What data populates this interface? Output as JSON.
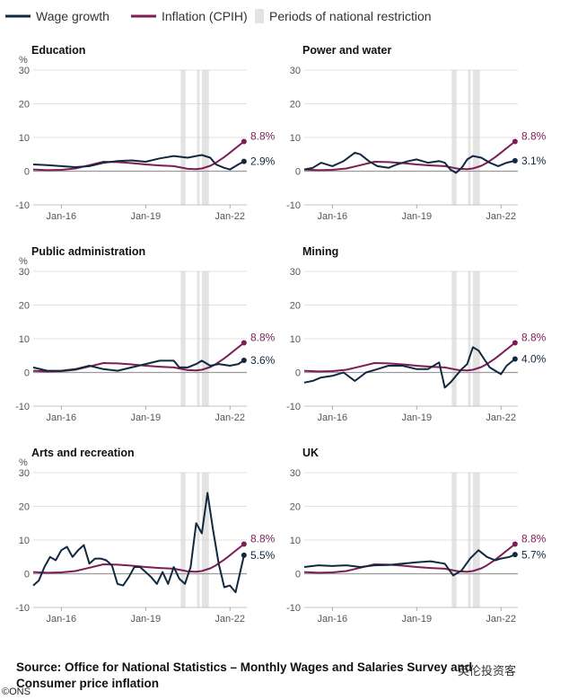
{
  "legend": {
    "wage": "Wage growth",
    "inflation": "Inflation (CPIH)",
    "restriction": "Periods of national restriction"
  },
  "colors": {
    "wage": "#12283f",
    "inflation": "#7d1d56",
    "restriction": "#e3e3e3",
    "zero": "#9a9a9a",
    "grid": "#d6d6d6"
  },
  "source": "Source: Office for National Statistics – Monthly Wages and Salaries Survey and Consumer price inflation",
  "credit": "©ONS",
  "watermark": "英伦投资客",
  "chart_data": [
    {
      "type": "line",
      "title": "Education",
      "ylabel": "%",
      "ylim": [
        -10,
        30
      ],
      "yticks": [
        30,
        20,
        10,
        0,
        -10
      ],
      "xlim": [
        2015.0,
        2022.6
      ],
      "xticks": [
        {
          "label": "Jan-16",
          "x": 2016.0
        },
        {
          "label": "Jan-19",
          "x": 2019.0
        },
        {
          "label": "Jan-22",
          "x": 2022.0
        }
      ],
      "restrictions": [
        [
          2020.25,
          2020.42
        ],
        [
          2020.83,
          2020.92
        ],
        [
          2021.0,
          2021.25
        ]
      ],
      "series": [
        {
          "name": "Wage growth",
          "label": "2.9%",
          "x": [
            2015.0,
            2015.5,
            2016.0,
            2016.5,
            2017.0,
            2017.5,
            2018.0,
            2018.5,
            2019.0,
            2019.5,
            2020.0,
            2020.5,
            2020.8,
            2021.0,
            2021.3,
            2021.5,
            2021.8,
            2022.0,
            2022.3,
            2022.5
          ],
          "y": [
            2.0,
            1.8,
            1.5,
            1.2,
            1.5,
            2.5,
            3.0,
            3.2,
            2.8,
            3.8,
            4.5,
            4.0,
            4.5,
            4.8,
            4.0,
            2.0,
            1.0,
            0.5,
            2.0,
            2.9
          ]
        },
        {
          "name": "Inflation (CPIH)",
          "label": "8.8%",
          "x": [
            2015.0,
            2015.5,
            2016.0,
            2016.5,
            2017.0,
            2017.5,
            2018.0,
            2018.5,
            2019.0,
            2019.5,
            2020.0,
            2020.5,
            2020.8,
            2021.0,
            2021.3,
            2021.5,
            2021.8,
            2022.0,
            2022.3,
            2022.5
          ],
          "y": [
            0.5,
            0.3,
            0.4,
            0.8,
            1.8,
            2.8,
            2.7,
            2.4,
            2.0,
            1.7,
            1.5,
            0.7,
            0.6,
            0.8,
            1.6,
            2.5,
            4.2,
            5.5,
            7.5,
            8.8
          ]
        }
      ]
    },
    {
      "type": "line",
      "title": "Power and water",
      "ylabel": "",
      "ylim": [
        -10,
        30
      ],
      "yticks": [
        30,
        20,
        10,
        0,
        -10
      ],
      "xlim": [
        2015.0,
        2022.6
      ],
      "xticks": [
        {
          "label": "Jan-16",
          "x": 2016.0
        },
        {
          "label": "Jan-19",
          "x": 2019.0
        },
        {
          "label": "Jan-22",
          "x": 2022.0
        }
      ],
      "restrictions": [
        [
          2020.25,
          2020.42
        ],
        [
          2020.83,
          2020.92
        ],
        [
          2021.0,
          2021.25
        ]
      ],
      "series": [
        {
          "name": "Wage growth",
          "label": "3.1%",
          "x": [
            2015.0,
            2015.3,
            2015.6,
            2016.0,
            2016.4,
            2016.8,
            2017.0,
            2017.3,
            2017.6,
            2018.0,
            2018.3,
            2018.7,
            2019.0,
            2019.4,
            2019.8,
            2020.0,
            2020.2,
            2020.4,
            2020.6,
            2020.8,
            2021.0,
            2021.3,
            2021.6,
            2021.9,
            2022.2,
            2022.5
          ],
          "y": [
            0.5,
            1.0,
            2.5,
            1.5,
            3.0,
            5.5,
            5.0,
            3.0,
            1.5,
            1.0,
            2.0,
            3.0,
            3.5,
            2.5,
            3.0,
            2.5,
            0.5,
            -0.5,
            1.0,
            3.5,
            4.5,
            4.0,
            2.5,
            1.5,
            2.5,
            3.1
          ]
        },
        {
          "name": "Inflation (CPIH)",
          "label": "8.8%",
          "x": [
            2015.0,
            2015.5,
            2016.0,
            2016.5,
            2017.0,
            2017.5,
            2018.0,
            2018.5,
            2019.0,
            2019.5,
            2020.0,
            2020.5,
            2020.8,
            2021.0,
            2021.3,
            2021.5,
            2021.8,
            2022.0,
            2022.3,
            2022.5
          ],
          "y": [
            0.5,
            0.3,
            0.4,
            0.8,
            1.8,
            2.8,
            2.7,
            2.4,
            2.0,
            1.7,
            1.5,
            0.7,
            0.6,
            0.8,
            1.6,
            2.5,
            4.2,
            5.5,
            7.5,
            8.8
          ]
        }
      ]
    },
    {
      "type": "line",
      "title": "Public administration",
      "ylabel": "%",
      "ylim": [
        -10,
        30
      ],
      "yticks": [
        30,
        20,
        10,
        0,
        -10
      ],
      "xlim": [
        2015.0,
        2022.6
      ],
      "xticks": [
        {
          "label": "Jan-16",
          "x": 2016.0
        },
        {
          "label": "Jan-19",
          "x": 2019.0
        },
        {
          "label": "Jan-22",
          "x": 2022.0
        }
      ],
      "restrictions": [
        [
          2020.25,
          2020.42
        ],
        [
          2020.83,
          2020.92
        ],
        [
          2021.0,
          2021.25
        ]
      ],
      "series": [
        {
          "name": "Wage growth",
          "label": "3.6%",
          "x": [
            2015.0,
            2015.5,
            2016.0,
            2016.5,
            2017.0,
            2017.5,
            2018.0,
            2018.5,
            2019.0,
            2019.5,
            2020.0,
            2020.2,
            2020.5,
            2020.8,
            2021.0,
            2021.3,
            2021.6,
            2022.0,
            2022.3,
            2022.5
          ],
          "y": [
            1.5,
            0.5,
            0.5,
            1.0,
            2.0,
            1.0,
            0.5,
            1.5,
            2.5,
            3.5,
            3.5,
            1.5,
            1.5,
            2.5,
            3.5,
            2.0,
            2.5,
            2.0,
            2.5,
            3.6
          ]
        },
        {
          "name": "Inflation (CPIH)",
          "label": "8.8%",
          "x": [
            2015.0,
            2015.5,
            2016.0,
            2016.5,
            2017.0,
            2017.5,
            2018.0,
            2018.5,
            2019.0,
            2019.5,
            2020.0,
            2020.5,
            2020.8,
            2021.0,
            2021.3,
            2021.5,
            2021.8,
            2022.0,
            2022.3,
            2022.5
          ],
          "y": [
            0.5,
            0.3,
            0.4,
            0.8,
            1.8,
            2.8,
            2.7,
            2.4,
            2.0,
            1.7,
            1.5,
            0.7,
            0.6,
            0.8,
            1.6,
            2.5,
            4.2,
            5.5,
            7.5,
            8.8
          ]
        }
      ]
    },
    {
      "type": "line",
      "title": "Mining",
      "ylabel": "",
      "ylim": [
        -10,
        30
      ],
      "yticks": [
        30,
        20,
        10,
        0,
        -10
      ],
      "xlim": [
        2015.0,
        2022.6
      ],
      "xticks": [
        {
          "label": "Jan-16",
          "x": 2016.0
        },
        {
          "label": "Jan-19",
          "x": 2019.0
        },
        {
          "label": "Jan-22",
          "x": 2022.0
        }
      ],
      "restrictions": [
        [
          2020.25,
          2020.42
        ],
        [
          2020.83,
          2020.92
        ],
        [
          2021.0,
          2021.25
        ]
      ],
      "series": [
        {
          "name": "Wage growth",
          "label": "4.0%",
          "x": [
            2015.0,
            2015.3,
            2015.6,
            2016.0,
            2016.4,
            2016.8,
            2017.2,
            2017.6,
            2018.0,
            2018.5,
            2019.0,
            2019.4,
            2019.8,
            2020.0,
            2020.2,
            2020.4,
            2020.6,
            2020.8,
            2021.0,
            2021.2,
            2021.4,
            2021.6,
            2021.8,
            2022.0,
            2022.2,
            2022.5
          ],
          "y": [
            -3.0,
            -2.5,
            -1.5,
            -1.0,
            0.0,
            -2.5,
            0.0,
            1.0,
            2.0,
            2.0,
            1.0,
            1.0,
            3.0,
            -4.5,
            -3.0,
            -1.0,
            1.0,
            2.5,
            7.5,
            6.5,
            4.0,
            1.5,
            0.5,
            -0.5,
            2.0,
            4.0
          ]
        },
        {
          "name": "Inflation (CPIH)",
          "label": "8.8%",
          "x": [
            2015.0,
            2015.5,
            2016.0,
            2016.5,
            2017.0,
            2017.5,
            2018.0,
            2018.5,
            2019.0,
            2019.5,
            2020.0,
            2020.5,
            2020.8,
            2021.0,
            2021.3,
            2021.5,
            2021.8,
            2022.0,
            2022.3,
            2022.5
          ],
          "y": [
            0.5,
            0.3,
            0.4,
            0.8,
            1.8,
            2.8,
            2.7,
            2.4,
            2.0,
            1.7,
            1.5,
            0.7,
            0.6,
            0.8,
            1.6,
            2.5,
            4.2,
            5.5,
            7.5,
            8.8
          ]
        }
      ]
    },
    {
      "type": "line",
      "title": "Arts and recreation",
      "ylabel": "%",
      "ylim": [
        -10,
        30
      ],
      "yticks": [
        30,
        20,
        10,
        0,
        -10
      ],
      "xlim": [
        2015.0,
        2022.6
      ],
      "xticks": [
        {
          "label": "Jan-16",
          "x": 2016.0
        },
        {
          "label": "Jan-19",
          "x": 2019.0
        },
        {
          "label": "Jan-22",
          "x": 2022.0
        }
      ],
      "restrictions": [
        [
          2020.25,
          2020.42
        ],
        [
          2020.83,
          2020.92
        ],
        [
          2021.0,
          2021.25
        ]
      ],
      "series": [
        {
          "name": "Wage growth",
          "label": "5.5%",
          "x": [
            2015.0,
            2015.2,
            2015.4,
            2015.6,
            2015.8,
            2016.0,
            2016.2,
            2016.4,
            2016.6,
            2016.8,
            2017.0,
            2017.2,
            2017.4,
            2017.6,
            2017.8,
            2018.0,
            2018.2,
            2018.4,
            2018.6,
            2018.8,
            2019.0,
            2019.2,
            2019.4,
            2019.6,
            2019.8,
            2020.0,
            2020.2,
            2020.4,
            2020.6,
            2020.8,
            2021.0,
            2021.2,
            2021.4,
            2021.6,
            2021.8,
            2022.0,
            2022.2,
            2022.5
          ],
          "y": [
            -3.5,
            -2.0,
            2.0,
            5.0,
            4.0,
            7.0,
            8.0,
            5.0,
            7.0,
            8.5,
            3.0,
            4.5,
            4.5,
            4.0,
            2.5,
            -3.0,
            -3.5,
            -1.0,
            2.0,
            2.0,
            0.5,
            -1.0,
            -3.0,
            0.5,
            -3.0,
            2.0,
            -1.5,
            -3.0,
            2.0,
            15.0,
            12.0,
            24.0,
            13.0,
            3.0,
            -4.0,
            -3.5,
            -5.5,
            5.5
          ]
        },
        {
          "name": "Inflation (CPIH)",
          "label": "8.8%",
          "x": [
            2015.0,
            2015.5,
            2016.0,
            2016.5,
            2017.0,
            2017.5,
            2018.0,
            2018.5,
            2019.0,
            2019.5,
            2020.0,
            2020.5,
            2020.8,
            2021.0,
            2021.3,
            2021.5,
            2021.8,
            2022.0,
            2022.3,
            2022.5
          ],
          "y": [
            0.5,
            0.3,
            0.4,
            0.8,
            1.8,
            2.8,
            2.7,
            2.4,
            2.0,
            1.7,
            1.5,
            0.7,
            0.6,
            0.8,
            1.6,
            2.5,
            4.2,
            5.5,
            7.5,
            8.8
          ]
        }
      ]
    },
    {
      "type": "line",
      "title": "UK",
      "ylabel": "",
      "ylim": [
        -10,
        30
      ],
      "yticks": [
        30,
        20,
        10,
        0,
        -10
      ],
      "xlim": [
        2015.0,
        2022.6
      ],
      "xticks": [
        {
          "label": "Jan-16",
          "x": 2016.0
        },
        {
          "label": "Jan-19",
          "x": 2019.0
        },
        {
          "label": "Jan-22",
          "x": 2022.0
        }
      ],
      "restrictions": [
        [
          2020.25,
          2020.42
        ],
        [
          2020.83,
          2020.92
        ],
        [
          2021.0,
          2021.25
        ]
      ],
      "series": [
        {
          "name": "Wage growth",
          "label": "5.7%",
          "x": [
            2015.0,
            2015.5,
            2016.0,
            2016.5,
            2017.0,
            2017.5,
            2018.0,
            2018.5,
            2019.0,
            2019.5,
            2020.0,
            2020.3,
            2020.6,
            2020.9,
            2021.2,
            2021.5,
            2021.8,
            2022.0,
            2022.3,
            2022.5
          ],
          "y": [
            2.0,
            2.5,
            2.3,
            2.5,
            2.0,
            2.5,
            2.6,
            3.0,
            3.4,
            3.7,
            3.0,
            -0.5,
            1.0,
            4.5,
            7.0,
            5.0,
            4.0,
            4.5,
            5.0,
            5.7
          ]
        },
        {
          "name": "Inflation (CPIH)",
          "label": "8.8%",
          "x": [
            2015.0,
            2015.5,
            2016.0,
            2016.5,
            2017.0,
            2017.5,
            2018.0,
            2018.5,
            2019.0,
            2019.5,
            2020.0,
            2020.5,
            2020.8,
            2021.0,
            2021.3,
            2021.5,
            2021.8,
            2022.0,
            2022.3,
            2022.5
          ],
          "y": [
            0.5,
            0.3,
            0.4,
            0.8,
            1.8,
            2.8,
            2.7,
            2.4,
            2.0,
            1.7,
            1.5,
            0.7,
            0.6,
            0.8,
            1.6,
            2.5,
            4.2,
            5.5,
            7.5,
            8.8
          ]
        }
      ]
    }
  ]
}
